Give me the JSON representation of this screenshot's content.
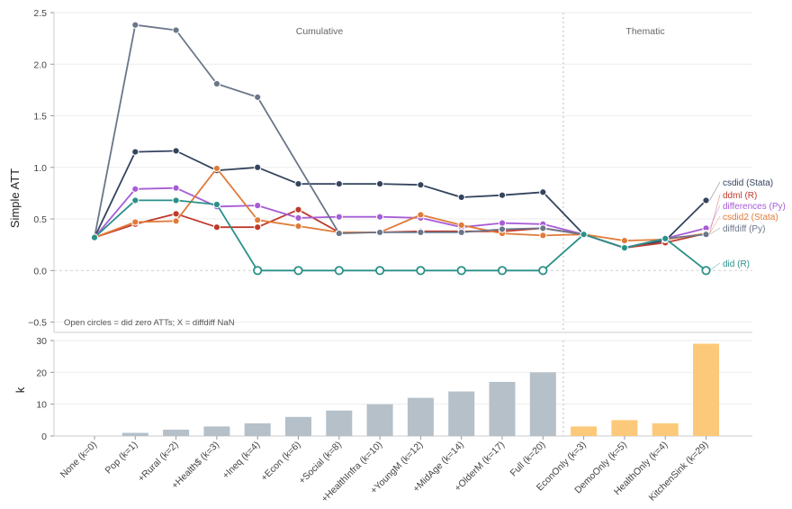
{
  "chart_data": [
    {
      "type": "line",
      "ylabel": "Simple ATT",
      "ylim": [
        -0.6,
        2.5
      ],
      "yticks": [
        -0.5,
        0.0,
        0.5,
        1.0,
        1.5,
        2.0,
        2.5
      ],
      "ytick_labels": [
        "−0.5",
        "0.0",
        "0.5",
        "1.0",
        "1.5",
        "2.0",
        "2.5"
      ],
      "sections": [
        "Cumulative",
        "Thematic"
      ],
      "note": "Open circles = did zero ATTs; X = diffdiff NaN",
      "categories": [
        "None (k=0)",
        "Pop (k=1)",
        "+Rural (k=2)",
        "+Health$ (k=3)",
        "+Ineq (k=4)",
        "+Econ (k=6)",
        "+Social (k=8)",
        "+HealthInfra (k=10)",
        "+YoungM (k=12)",
        "+MidAge (k=14)",
        "+OlderM (k=17)",
        "Full (k=20)",
        "EconOnly (k=3)",
        "DemoOnly (k=5)",
        "HealthOnly (k=4)",
        "KitchenSink (k=29)"
      ],
      "series": [
        {
          "name": "csdid (Stata)",
          "color": "#34445e",
          "values": [
            0.32,
            1.15,
            1.16,
            0.97,
            1.0,
            0.84,
            0.84,
            0.84,
            0.83,
            0.71,
            0.73,
            0.76,
            0.35,
            0.22,
            0.29,
            0.68
          ]
        },
        {
          "name": "ddml (R)",
          "color": "#c0392b",
          "values": [
            0.32,
            0.45,
            0.55,
            0.42,
            0.42,
            0.59,
            0.37,
            0.37,
            0.38,
            0.38,
            0.38,
            0.41,
            0.35,
            0.22,
            0.27,
            0.36
          ]
        },
        {
          "name": "differences (Py)",
          "color": "#a75cd6",
          "values": [
            0.32,
            0.79,
            0.8,
            0.62,
            0.63,
            0.51,
            0.52,
            0.52,
            0.51,
            0.42,
            0.46,
            0.45,
            0.35,
            0.22,
            0.31,
            0.41
          ]
        },
        {
          "name": "csdid2 (Stata)",
          "color": "#e07b39",
          "values": [
            0.32,
            0.47,
            0.48,
            0.99,
            0.49,
            0.43,
            0.37,
            0.37,
            0.54,
            0.44,
            0.36,
            0.34,
            0.35,
            0.29,
            0.3,
            0.36
          ]
        },
        {
          "name": "diffdiff (Py)",
          "color": "#6b7689",
          "values": [
            0.32,
            2.38,
            2.33,
            1.81,
            1.68,
            null,
            0.36,
            0.37,
            0.37,
            0.37,
            0.4,
            0.41,
            0.35,
            0.22,
            0.31,
            0.35
          ]
        },
        {
          "name": "did (R)",
          "color": "#2a9089",
          "values": [
            0.32,
            0.68,
            0.68,
            0.64,
            0.0,
            0.0,
            0.0,
            0.0,
            0.0,
            0.0,
            0.0,
            0.0,
            0.35,
            0.22,
            0.31,
            0.0
          ],
          "open": [
            false,
            false,
            false,
            false,
            true,
            true,
            true,
            true,
            true,
            true,
            true,
            true,
            false,
            false,
            false,
            true
          ]
        }
      ]
    },
    {
      "type": "bar",
      "ylabel": "k",
      "ylim": [
        0,
        30
      ],
      "yticks": [
        0,
        10,
        20,
        30
      ],
      "categories": [
        "None (k=0)",
        "Pop (k=1)",
        "+Rural (k=2)",
        "+Health$ (k=3)",
        "+Ineq (k=4)",
        "+Econ (k=6)",
        "+Social (k=8)",
        "+HealthInfra (k=10)",
        "+YoungM (k=12)",
        "+MidAge (k=14)",
        "+OlderM (k=17)",
        "Full (k=20)",
        "EconOnly (k=3)",
        "DemoOnly (k=5)",
        "HealthOnly (k=4)",
        "KitchenSink (k=29)"
      ],
      "values": [
        0,
        1,
        2,
        3,
        4,
        6,
        8,
        10,
        12,
        14,
        17,
        20,
        3,
        5,
        4,
        29
      ],
      "groups": [
        "cumulative",
        "cumulative",
        "cumulative",
        "cumulative",
        "cumulative",
        "cumulative",
        "cumulative",
        "cumulative",
        "cumulative",
        "cumulative",
        "cumulative",
        "cumulative",
        "thematic",
        "thematic",
        "thematic",
        "thematic"
      ],
      "colors": {
        "cumulative": "#b5c0c9",
        "thematic": "#fcc97a"
      }
    }
  ]
}
